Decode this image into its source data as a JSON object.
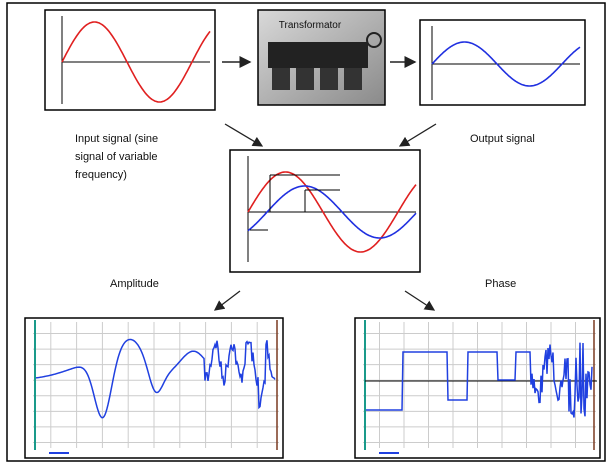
{
  "diagram": {
    "transformer_label": "Transformator",
    "input_label": [
      "Input signal  (sine",
      "signal of variable",
      "frequency)"
    ],
    "output_label": "Output signal",
    "amplitude_label": "Amplitude",
    "phase_label": "Phase"
  }
}
